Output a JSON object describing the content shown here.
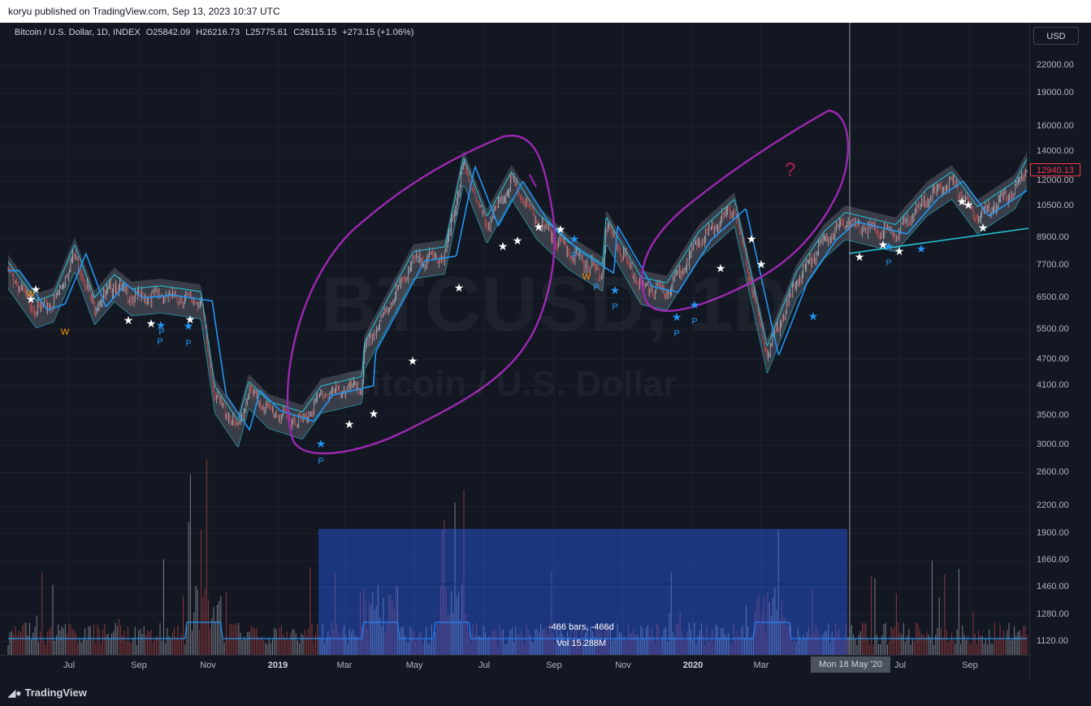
{
  "header": {
    "published_text": "koryu published on TradingView.com, Sep 13, 2023 10:37 UTC"
  },
  "legend": {
    "symbol": "Bitcoin / U.S. Dollar, 1D, INDEX",
    "open": "O25842.09",
    "high": "H26216.73",
    "low": "L25775.61",
    "close": "C26115.15",
    "change": "+273.15 (+1.06%)"
  },
  "currency_button": "USD",
  "watermark": {
    "ticker": "BTCUSD, 1D",
    "name": "Bitcoin / U.S. Dollar"
  },
  "last_price_tag": "12940.13",
  "cursor_date": "Mon 18 May '20",
  "annotation_question": "?",
  "measure": {
    "bars": "-466 bars, -466d",
    "volume": "Vol 15.288M"
  },
  "footer_brand": "TradingView",
  "colors": {
    "background": "#131722",
    "candle_up": "#d1d4dc",
    "candle_down": "#ef5350",
    "ma_white": "#ffffff",
    "band_cyan": "#26c6da",
    "band_gray": "#787b86",
    "ma_blue": "#2196f3",
    "drawing_purple": "#9c27b0",
    "volume_ma": "#2196f3",
    "measure_box": "#2962ff",
    "pivot_star_white": "#ffffff",
    "pivot_star_blue": "#2196f3",
    "label_orange": "#ff9800"
  },
  "chart_data": {
    "type": "candlestick",
    "symbol": "Bitcoin / U.S. Dollar",
    "interval": "1D",
    "y_scale": "log",
    "price_axis_ticks": [
      "22000.00",
      "19000.00",
      "16000.00",
      "14000.00",
      "12000.00",
      "10500.00",
      "8900.00",
      "7700.00",
      "6500.00",
      "5500.00",
      "4700.00",
      "4100.00",
      "3500.00",
      "3000.00",
      "2600.00",
      "2200.00",
      "1900.00",
      "1660.00",
      "1460.00",
      "1280.00",
      "1120.00"
    ],
    "time_axis_labels": [
      {
        "label": "Jul",
        "bold": false
      },
      {
        "label": "Sep",
        "bold": false
      },
      {
        "label": "Nov",
        "bold": false
      },
      {
        "label": "2019",
        "bold": true
      },
      {
        "label": "Mar",
        "bold": false
      },
      {
        "label": "May",
        "bold": false
      },
      {
        "label": "Jul",
        "bold": false
      },
      {
        "label": "Sep",
        "bold": false
      },
      {
        "label": "Nov",
        "bold": false
      },
      {
        "label": "2020",
        "bold": true
      },
      {
        "label": "Mar",
        "bold": false
      },
      {
        "label": "Jul",
        "bold": false
      },
      {
        "label": "Sep",
        "bold": false
      }
    ],
    "price_path": [
      [
        "2018-06-01",
        7500
      ],
      [
        "2018-06-25",
        6100
      ],
      [
        "2018-07-10",
        6300
      ],
      [
        "2018-07-28",
        8200
      ],
      [
        "2018-08-14",
        6200
      ],
      [
        "2018-08-31",
        7000
      ],
      [
        "2018-09-15",
        6500
      ],
      [
        "2018-10-10",
        6600
      ],
      [
        "2018-11-13",
        6400
      ],
      [
        "2018-11-25",
        3900
      ],
      [
        "2018-12-15",
        3250
      ],
      [
        "2018-12-24",
        4000
      ],
      [
        "2019-01-10",
        3600
      ],
      [
        "2019-02-08",
        3400
      ],
      [
        "2019-02-24",
        3900
      ],
      [
        "2019-03-31",
        4100
      ],
      [
        "2019-04-02",
        4900
      ],
      [
        "2019-05-14",
        7900
      ],
      [
        "2019-06-10",
        8100
      ],
      [
        "2019-06-26",
        13000
      ],
      [
        "2019-07-16",
        9500
      ],
      [
        "2019-08-06",
        12000
      ],
      [
        "2019-08-28",
        9700
      ],
      [
        "2019-09-24",
        8300
      ],
      [
        "2019-10-23",
        7400
      ],
      [
        "2019-10-26",
        9500
      ],
      [
        "2019-11-25",
        6900
      ],
      [
        "2019-12-17",
        6700
      ],
      [
        "2020-01-14",
        8800
      ],
      [
        "2020-02-13",
        10400
      ],
      [
        "2020-03-12",
        4800
      ],
      [
        "2020-04-06",
        7100
      ],
      [
        "2020-04-30",
        8800
      ],
      [
        "2020-05-18",
        9700
      ],
      [
        "2020-06-30",
        9100
      ],
      [
        "2020-07-27",
        11000
      ],
      [
        "2020-08-17",
        12000
      ],
      [
        "2020-09-08",
        10000
      ],
      [
        "2020-10-10",
        11400
      ],
      [
        "2020-10-21",
        12940.13
      ]
    ],
    "volume_peak_months": [
      "2018-11",
      "2019-04",
      "2019-06",
      "2020-03"
    ],
    "pivot_labels": [
      "W",
      "P",
      "P",
      "P",
      "P",
      "P",
      "P",
      "P",
      "P",
      "P",
      "P",
      "W",
      "W"
    ]
  }
}
